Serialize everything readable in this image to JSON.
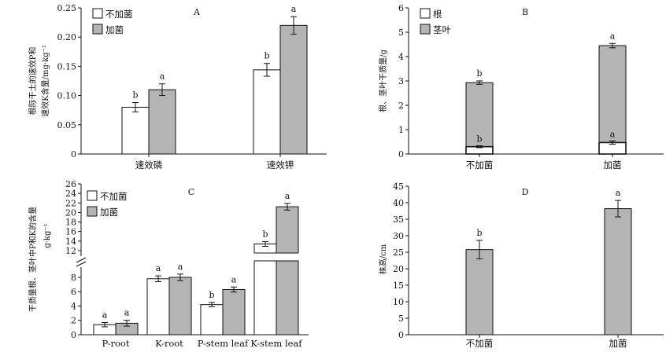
{
  "chart_data": [
    {
      "panel": "A",
      "type": "bar",
      "ylabel": "根际干土的速效P和速效K含量/mg·kg⁻¹",
      "categories": [
        "速效磷",
        "速效钾"
      ],
      "series": [
        {
          "name": "不加菌",
          "values": [
            0.08,
            0.144
          ],
          "errors": [
            0.008,
            0.011
          ],
          "labels": [
            "b",
            "b"
          ]
        },
        {
          "name": "加菌",
          "values": [
            0.11,
            0.22
          ],
          "errors": [
            0.01,
            0.015
          ],
          "labels": [
            "a",
            "a"
          ]
        }
      ],
      "ylim": [
        0,
        0.25
      ],
      "yticks": [
        "0",
        "0.05",
        "0.10",
        "0.15",
        "0.20",
        "0.25"
      ],
      "legend": "top-left"
    },
    {
      "panel": "B",
      "type": "bar",
      "stacked": true,
      "ylabel": "根、茎叶干质量/g",
      "categories": [
        "不加菌",
        "加菌"
      ],
      "series": [
        {
          "name": "根",
          "values": [
            0.3,
            0.47
          ],
          "errors": [
            0.04,
            0.07
          ],
          "labels": [
            "b",
            "a"
          ]
        },
        {
          "name": "茎叶",
          "totals": [
            2.93,
            4.45
          ],
          "errors": [
            0.07,
            0.09
          ],
          "labels": [
            "b",
            "a"
          ]
        }
      ],
      "ylim": [
        0,
        6
      ],
      "yticks": [
        "0",
        "1",
        "2",
        "3",
        "4",
        "5",
        "6"
      ],
      "legend": "top-left"
    },
    {
      "panel": "C",
      "type": "bar",
      "ylabel": "干质量根、茎叶中P和K的含量/g·kg⁻¹",
      "categories": [
        "P-root",
        "K-root",
        "P-stem leaf",
        "K-stem leaf"
      ],
      "series": [
        {
          "name": "不加菌",
          "values": [
            1.4,
            7.8,
            4.2,
            13.4
          ],
          "errors": [
            0.3,
            0.4,
            0.3,
            0.5
          ],
          "labels": [
            "a",
            "a",
            "b",
            "b"
          ]
        },
        {
          "name": "加菌",
          "values": [
            1.6,
            8.0,
            6.3,
            21.2
          ],
          "errors": [
            0.4,
            0.45,
            0.35,
            0.7
          ],
          "labels": [
            "a",
            "a",
            "a",
            "a"
          ]
        }
      ],
      "axis_break": [
        9.2,
        11.5
      ],
      "yticks_lower": [
        "0",
        "2",
        "4",
        "6",
        "8"
      ],
      "yticks_upper": [
        "12",
        "14",
        "16",
        "18",
        "20",
        "22",
        "24",
        "26"
      ],
      "legend": "top-left"
    },
    {
      "panel": "D",
      "type": "bar",
      "ylabel": "株高/cm",
      "categories": [
        "不加菌",
        "加菌"
      ],
      "series": [
        {
          "values": [
            25.8,
            38.2
          ],
          "errors": [
            2.8,
            2.5
          ],
          "labels": [
            "b",
            "a"
          ]
        }
      ],
      "ylim": [
        0,
        45
      ],
      "yticks": [
        "0",
        "5",
        "10",
        "15",
        "20",
        "25",
        "30",
        "35",
        "40",
        "45"
      ]
    }
  ]
}
